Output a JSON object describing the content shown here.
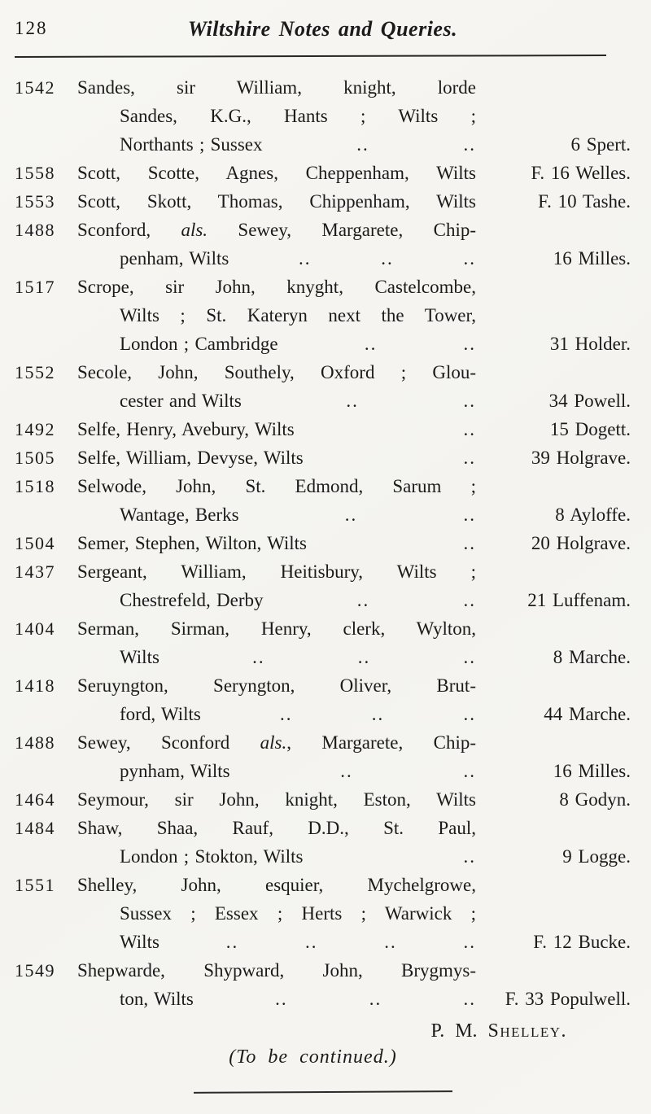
{
  "page": {
    "number": "128",
    "header_title": "Wiltshire Notes and Queries.",
    "leader": "..",
    "paper_color": "#f6f5f2",
    "ink_color": "#1b1b1b"
  },
  "entries": [
    {
      "year": "1542",
      "indent": 0,
      "dots": 0,
      "ref": "",
      "fill": true,
      "segments": [
        {
          "text": "Sandes, sir William, knight, lorde",
          "italic": false
        }
      ]
    },
    {
      "year": "",
      "indent": 1,
      "dots": 0,
      "ref": "",
      "fill": true,
      "segments": [
        {
          "text": "Sandes, K.G., Hants ; Wilts ;",
          "italic": false
        }
      ]
    },
    {
      "year": "",
      "indent": 1,
      "dots": 2,
      "ref": "6 Spert.",
      "fill": false,
      "segments": [
        {
          "text": "Northants ; Sussex",
          "italic": false
        }
      ]
    },
    {
      "year": "1558",
      "indent": 0,
      "dots": 0,
      "ref": "F. 16 Welles.",
      "fill": true,
      "segments": [
        {
          "text": "Scott, Scotte, Agnes, Cheppenham, Wilts",
          "italic": false
        }
      ]
    },
    {
      "year": "1553",
      "indent": 0,
      "dots": 0,
      "ref": "F. 10 Tashe.",
      "fill": true,
      "segments": [
        {
          "text": "Scott, Skott, Thomas, Chippenham, Wilts",
          "italic": false
        }
      ]
    },
    {
      "year": "1488",
      "indent": 0,
      "dots": 0,
      "ref": "",
      "fill": true,
      "segments": [
        {
          "text": "Sconford, ",
          "italic": false
        },
        {
          "text": "als.",
          "italic": true
        },
        {
          "text": " Sewey, Margarete, Chip-",
          "italic": false
        }
      ]
    },
    {
      "year": "",
      "indent": 1,
      "dots": 3,
      "ref": "16 Milles.",
      "fill": false,
      "segments": [
        {
          "text": "penham, Wilts",
          "italic": false
        }
      ]
    },
    {
      "year": "1517",
      "indent": 0,
      "dots": 0,
      "ref": "",
      "fill": true,
      "segments": [
        {
          "text": "Scrope, sir John, knyght, Castelcombe,",
          "italic": false
        }
      ]
    },
    {
      "year": "",
      "indent": 1,
      "dots": 0,
      "ref": "",
      "fill": true,
      "segments": [
        {
          "text": "Wilts ; St. Kateryn next the Tower,",
          "italic": false
        }
      ]
    },
    {
      "year": "",
      "indent": 1,
      "dots": 2,
      "ref": "31 Holder.",
      "fill": false,
      "segments": [
        {
          "text": "London ; Cambridge",
          "italic": false
        }
      ]
    },
    {
      "year": "1552",
      "indent": 0,
      "dots": 0,
      "ref": "",
      "fill": true,
      "segments": [
        {
          "text": "Secole, John, Southely, Oxford ; Glou-",
          "italic": false
        }
      ]
    },
    {
      "year": "",
      "indent": 1,
      "dots": 2,
      "ref": "34 Powell.",
      "fill": false,
      "segments": [
        {
          "text": "cester and Wilts",
          "italic": false
        }
      ]
    },
    {
      "year": "1492",
      "indent": 0,
      "dots": 1,
      "ref": "15 Dogett.",
      "fill": false,
      "segments": [
        {
          "text": "Selfe, Henry, Avebury, Wilts",
          "italic": false
        }
      ]
    },
    {
      "year": "1505",
      "indent": 0,
      "dots": 1,
      "ref": "39 Holgrave.",
      "fill": false,
      "segments": [
        {
          "text": "Selfe, William, Devyse, Wilts",
          "italic": false
        }
      ]
    },
    {
      "year": "1518",
      "indent": 0,
      "dots": 0,
      "ref": "",
      "fill": true,
      "segments": [
        {
          "text": "Selwode, John, St. Edmond, Sarum ;",
          "italic": false
        }
      ]
    },
    {
      "year": "",
      "indent": 1,
      "dots": 2,
      "ref": "8 Ayloffe.",
      "fill": false,
      "segments": [
        {
          "text": "Wantage, Berks",
          "italic": false
        }
      ]
    },
    {
      "year": "1504",
      "indent": 0,
      "dots": 1,
      "ref": "20 Holgrave.",
      "fill": false,
      "segments": [
        {
          "text": "Semer, Stephen, Wilton, Wilts",
          "italic": false
        }
      ]
    },
    {
      "year": "1437",
      "indent": 0,
      "dots": 0,
      "ref": "",
      "fill": true,
      "segments": [
        {
          "text": "Sergeant, William, Heitisbury, Wilts ;",
          "italic": false
        }
      ]
    },
    {
      "year": "",
      "indent": 1,
      "dots": 2,
      "ref": "21 Luffenam.",
      "fill": false,
      "segments": [
        {
          "text": "Chestrefeld, Derby",
          "italic": false
        }
      ]
    },
    {
      "year": "1404",
      "indent": 0,
      "dots": 0,
      "ref": "",
      "fill": true,
      "segments": [
        {
          "text": "Serman, Sirman, Henry, clerk, Wylton,",
          "italic": false
        }
      ]
    },
    {
      "year": "",
      "indent": 1,
      "dots": 3,
      "ref": "8 Marche.",
      "fill": false,
      "segments": [
        {
          "text": "Wilts",
          "italic": false
        }
      ]
    },
    {
      "year": "1418",
      "indent": 0,
      "dots": 0,
      "ref": "",
      "fill": true,
      "segments": [
        {
          "text": "Seruyngton, Seryngton, Oliver, Brut-",
          "italic": false
        }
      ]
    },
    {
      "year": "",
      "indent": 1,
      "dots": 3,
      "ref": "44 Marche.",
      "fill": false,
      "segments": [
        {
          "text": "ford, Wilts",
          "italic": false
        }
      ]
    },
    {
      "year": "1488",
      "indent": 0,
      "dots": 0,
      "ref": "",
      "fill": true,
      "segments": [
        {
          "text": "Sewey, Sconford ",
          "italic": false
        },
        {
          "text": "als.",
          "italic": true
        },
        {
          "text": ", Margarete, Chip-",
          "italic": false
        }
      ]
    },
    {
      "year": "",
      "indent": 1,
      "dots": 2,
      "ref": "16 Milles.",
      "fill": false,
      "segments": [
        {
          "text": "pynham, Wilts",
          "italic": false
        }
      ]
    },
    {
      "year": "1464",
      "indent": 0,
      "dots": 0,
      "ref": "8 Godyn.",
      "fill": true,
      "segments": [
        {
          "text": "Seymour, sir John, knight, Eston, Wilts",
          "italic": false
        }
      ]
    },
    {
      "year": "1484",
      "indent": 0,
      "dots": 0,
      "ref": "",
      "fill": true,
      "segments": [
        {
          "text": "Shaw, Shaa, Rauf, D.D., St. Paul,",
          "italic": false
        }
      ]
    },
    {
      "year": "",
      "indent": 1,
      "dots": 1,
      "ref": "9 Logge.",
      "fill": false,
      "segments": [
        {
          "text": "London ; Stokton, Wilts",
          "italic": false
        }
      ]
    },
    {
      "year": "1551",
      "indent": 0,
      "dots": 0,
      "ref": "",
      "fill": true,
      "segments": [
        {
          "text": "Shelley, John, esquier, Mychelgrowe,",
          "italic": false
        }
      ]
    },
    {
      "year": "",
      "indent": 1,
      "dots": 0,
      "ref": "",
      "fill": true,
      "segments": [
        {
          "text": "Sussex ; Essex ; Herts ; Warwick ;",
          "italic": false
        }
      ]
    },
    {
      "year": "",
      "indent": 1,
      "dots": 4,
      "ref": "F. 12 Bucke.",
      "fill": false,
      "segments": [
        {
          "text": "Wilts",
          "italic": false
        }
      ]
    },
    {
      "year": "1549",
      "indent": 0,
      "dots": 0,
      "ref": "",
      "fill": true,
      "segments": [
        {
          "text": "Shepwarde, Shypward, John, Brygmys-",
          "italic": false
        }
      ]
    },
    {
      "year": "",
      "indent": 1,
      "dots": 3,
      "ref": "F. 33 Populwell.",
      "fill": false,
      "segments": [
        {
          "text": "ton, Wilts",
          "italic": false
        }
      ]
    }
  ],
  "footer": {
    "signature_initials": "P. M.",
    "signature_surname": "Shelley.",
    "continued": "(To be continued.)"
  }
}
